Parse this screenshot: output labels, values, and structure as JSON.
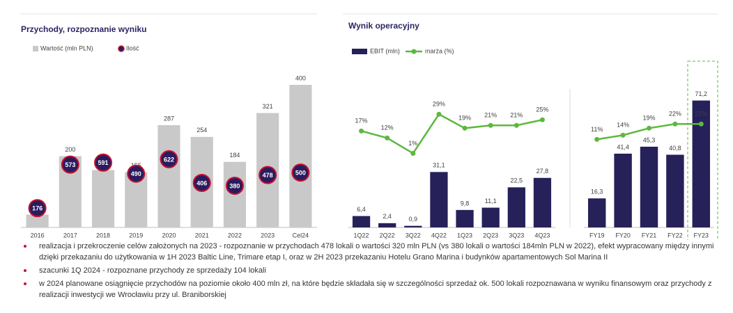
{
  "chart_data": [
    {
      "type": "combo",
      "title": "Przychody, rozpoznanie wyniku",
      "categories": [
        "2016",
        "2017",
        "2018",
        "2019",
        "2020",
        "2021",
        "2022",
        "2023",
        "Cel24"
      ],
      "series": [
        {
          "name": "Wartość (mln PLN)",
          "type": "bar",
          "color": "#c9c9c9",
          "values": [
            36,
            200,
            161,
            155,
            287,
            254,
            184,
            321,
            400
          ]
        },
        {
          "name": "Ilość",
          "type": "marker",
          "axis": "y2",
          "color": "#2b1b5e",
          "values": [
            176,
            573,
            591,
            490,
            622,
            406,
            380,
            478,
            500
          ]
        }
      ],
      "ylim": [
        0,
        400
      ],
      "y2lim": [
        0,
        1300
      ],
      "legend": true
    },
    {
      "type": "combo",
      "title": "Wynik operacyjny",
      "categories": [
        "1Q22",
        "2Q22",
        "3Q22",
        "4Q22",
        "1Q23",
        "2Q23",
        "3Q23",
        "4Q23"
      ],
      "series": [
        {
          "name": "EBIT (mln)",
          "type": "bar",
          "color": "#262159",
          "values": [
            6.4,
            2.4,
            0.9,
            31.1,
            9.8,
            11.1,
            22.5,
            27.8
          ],
          "value_labels": [
            "6,4",
            "2,4",
            "0,9",
            "31,1",
            "9,8",
            "11,1",
            "22,5",
            "27,8"
          ]
        },
        {
          "name": "marża (%)",
          "type": "line",
          "axis": "y2",
          "color": "#5cb83e",
          "values": [
            17,
            12,
            1,
            29,
            19,
            21,
            21,
            25
          ],
          "value_labels": [
            "17%",
            "12%",
            "1%",
            "29%",
            "19%",
            "21%",
            "21%",
            "25%"
          ]
        }
      ],
      "ylim": [
        0,
        80
      ],
      "y2lim": [
        -52,
        50
      ],
      "legend": true
    },
    {
      "type": "combo",
      "categories": [
        "FY19",
        "FY20",
        "FY21",
        "FY22",
        "FY23"
      ],
      "series": [
        {
          "type": "bar",
          "color": "#262159",
          "values": [
            16.3,
            41.4,
            45.3,
            40.8,
            71.2
          ],
          "value_labels": [
            "16,3",
            "41,4",
            "45,3",
            "40,8",
            "71,2"
          ]
        },
        {
          "type": "line",
          "axis": "y2",
          "color": "#5cb83e",
          "values": [
            11,
            14,
            19,
            22,
            22
          ],
          "value_labels": [
            "11%",
            "14%",
            "19%",
            "22%",
            "22%"
          ]
        }
      ],
      "ylim": [
        0,
        80
      ],
      "y2lim": [
        -52,
        50
      ],
      "legend": false
    }
  ],
  "notes": [
    "realizacja i przekroczenie celów założonych na 2023 - rozpoznanie w przychodach 478 lokali o wartości 320 mln PLN (vs 380 lokali o wartości 184mln PLN w 2022), efekt wypracowany między innymi dzięki przekazaniu do użytkowania w 1H 2023 Baltic Line, Trimare etap I, oraz w 2H 2023 przekazaniu Hotelu Grano Marina i budynków apartamentowych Sol Marina II",
    "szacunki 1Q 2024 - rozpoznane przychody ze sprzedaży 104 lokali",
    "w 2024 planowane osiągnięcie przychodów na poziomie około 400 mln zł, na które będzie składała się w szczególności sprzedaż ok. 500 lokali rozpoznawana w wyniku finansowym oraz przychody z realizacji inwestycji we Wrocławiu przy ul. Braniborskiej"
  ]
}
